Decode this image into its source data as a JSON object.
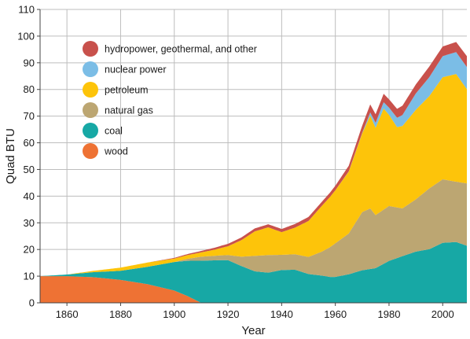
{
  "chart_data": {
    "type": "area",
    "stacked": true,
    "title": "",
    "xlabel": "Year",
    "ylabel": "Quad BTU",
    "xlim": [
      1850,
      2009
    ],
    "ylim": [
      0,
      110
    ],
    "x_ticks": [
      1860,
      1880,
      1900,
      1920,
      1940,
      1960,
      1980,
      2000
    ],
    "y_ticks": [
      0,
      10,
      20,
      30,
      40,
      50,
      60,
      70,
      80,
      90,
      100,
      110
    ],
    "grid": true,
    "legend_position": "top-left",
    "series": [
      {
        "name": "wood",
        "color": "#ee7234",
        "x": [
          1850,
          1860,
          1870,
          1880,
          1890,
          1900,
          1905,
          1910
        ],
        "y": [
          10,
          10,
          9.6,
          8.6,
          7,
          4.6,
          2.5,
          0
        ]
      },
      {
        "name": "coal",
        "color": "#17a8a5",
        "x": [
          1850,
          1860,
          1870,
          1880,
          1890,
          1900,
          1910,
          1918,
          1920,
          1925,
          1930,
          1935,
          1940,
          1945,
          1950,
          1955,
          1958,
          1960,
          1965,
          1970,
          1975,
          1980,
          1985,
          1990,
          1995,
          2000,
          2005,
          2009
        ],
        "y": [
          0,
          0.6,
          1.9,
          3.4,
          6.5,
          10.7,
          15.8,
          16,
          16,
          13.8,
          11.8,
          11.3,
          12.3,
          12.4,
          10.8,
          10.2,
          9.7,
          9.7,
          10.7,
          12.2,
          13,
          15.7,
          17.5,
          19.2,
          20.1,
          22.5,
          22.8,
          21.4
        ]
      },
      {
        "name": "natural gas",
        "color": "#bca672",
        "x": [
          1900,
          1910,
          1920,
          1925,
          1930,
          1935,
          1940,
          1945,
          1950,
          1955,
          1960,
          1965,
          1970,
          1973,
          1975,
          1980,
          1985,
          1990,
          1995,
          2000,
          2005,
          2009
        ],
        "y": [
          0,
          1.5,
          1.9,
          3.5,
          5.8,
          6.6,
          5.7,
          5.8,
          6.4,
          9,
          12.6,
          15.3,
          21.8,
          22.7,
          19.9,
          20.6,
          17.9,
          19.6,
          22.8,
          23.8,
          22.6,
          23.4
        ]
      },
      {
        "name": "petroleum",
        "color": "#fdc40a",
        "x": [
          1860,
          1870,
          1880,
          1890,
          1900,
          1905,
          1910,
          1915,
          1920,
          1925,
          1930,
          1935,
          1940,
          1945,
          1950,
          1955,
          1960,
          1965,
          1970,
          1973,
          1975,
          1978,
          1980,
          1983,
          1985,
          1990,
          1995,
          2000,
          2005,
          2009
        ],
        "y": [
          0,
          0.5,
          1.2,
          1.6,
          1.3,
          1.4,
          1.6,
          2.3,
          3.3,
          6.2,
          9.2,
          10.4,
          8.5,
          10,
          13.5,
          17.2,
          19.9,
          23.2,
          29.5,
          34.8,
          32.7,
          37.9,
          34.2,
          30.1,
          30.9,
          33.6,
          34.6,
          38.3,
          40.4,
          35.3
        ]
      },
      {
        "name": "nuclear power",
        "color": "#7bbde6",
        "x": [
          1958,
          1960,
          1965,
          1970,
          1975,
          1980,
          1985,
          1990,
          1995,
          2000,
          2005,
          2009
        ],
        "y": [
          0,
          0.01,
          0.1,
          0.2,
          1.9,
          2.7,
          4.1,
          6.1,
          7.1,
          7.9,
          8.2,
          8.3
        ]
      },
      {
        "name": "hydropower, geothermal, and other",
        "color": "#c8514c",
        "x": [
          1890,
          1900,
          1910,
          1920,
          1930,
          1940,
          1950,
          1955,
          1960,
          1965,
          1970,
          1975,
          1980,
          1985,
          1990,
          1995,
          2000,
          2005,
          2009
        ],
        "y": [
          0,
          0.25,
          0.55,
          0.9,
          1.1,
          1.2,
          1.5,
          1.5,
          1.7,
          2.1,
          2.7,
          3.2,
          3.1,
          3.5,
          3.4,
          4,
          3.6,
          3.8,
          4.1
        ]
      }
    ]
  },
  "legend_order": [
    "hydropower, geothermal, and other",
    "nuclear power",
    "petroleum",
    "natural gas",
    "coal",
    "wood"
  ]
}
